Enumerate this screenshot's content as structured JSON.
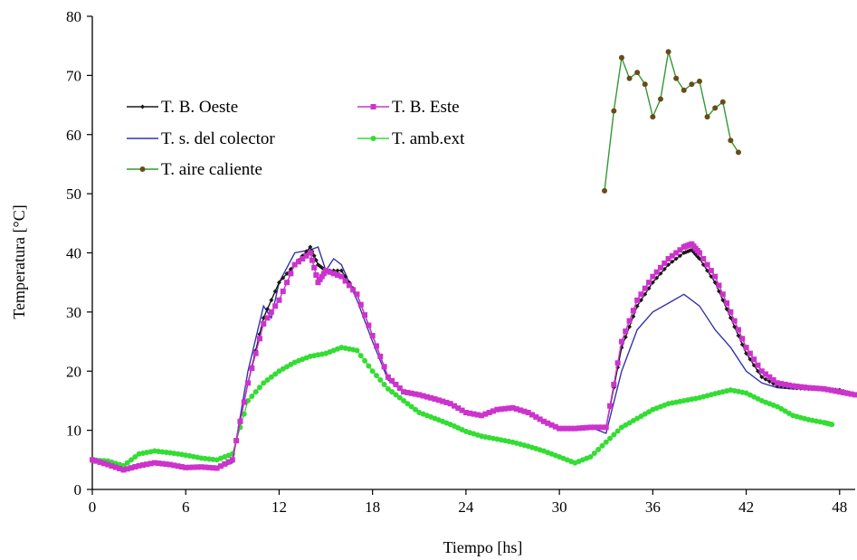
{
  "chart_data": {
    "type": "line",
    "title": "",
    "xlabel": "Tiempo [hs]",
    "ylabel": "Temperatura [°C]",
    "xlim": [
      0,
      49
    ],
    "ylim": [
      0,
      80
    ],
    "xticks": [
      0,
      6,
      12,
      18,
      24,
      30,
      36,
      42,
      48
    ],
    "yticks": [
      0,
      10,
      20,
      30,
      40,
      50,
      60,
      70,
      80
    ],
    "grid": false,
    "legend": "top-left",
    "series": [
      {
        "name": "T. B. Oeste",
        "color": "#1a1a1a",
        "marker": "diamond",
        "points": [
          [
            0,
            5
          ],
          [
            1,
            4.2
          ],
          [
            2,
            3.3
          ],
          [
            3,
            4
          ],
          [
            4,
            4.5
          ],
          [
            5,
            4.2
          ],
          [
            6,
            3.7
          ],
          [
            7,
            3.8
          ],
          [
            8,
            3.6
          ],
          [
            9,
            5
          ],
          [
            10,
            18
          ],
          [
            11,
            29
          ],
          [
            12,
            35
          ],
          [
            13,
            38
          ],
          [
            14,
            41
          ],
          [
            14.5,
            38
          ],
          [
            15,
            37
          ],
          [
            16,
            37
          ],
          [
            17,
            33
          ],
          [
            18,
            26
          ],
          [
            19,
            19
          ],
          [
            20,
            16.5
          ],
          [
            21,
            16
          ],
          [
            22,
            15.3
          ],
          [
            23,
            14.5
          ],
          [
            24,
            13
          ],
          [
            25,
            12.5
          ],
          [
            26,
            13.5
          ],
          [
            27,
            13.8
          ],
          [
            28,
            13
          ],
          [
            29,
            11.5
          ],
          [
            30,
            10.3
          ],
          [
            31,
            10.3
          ],
          [
            32,
            10.5
          ],
          [
            33,
            10.5
          ],
          [
            34,
            24
          ],
          [
            35,
            31
          ],
          [
            36,
            35
          ],
          [
            37,
            38
          ],
          [
            38,
            40
          ],
          [
            38.5,
            40.5
          ],
          [
            39,
            39
          ],
          [
            40,
            35
          ],
          [
            41,
            29
          ],
          [
            42,
            23
          ],
          [
            43,
            19
          ],
          [
            44,
            17.5
          ],
          [
            45,
            17.2
          ],
          [
            46,
            17
          ],
          [
            47,
            17
          ],
          [
            48,
            16.8
          ],
          [
            49,
            16
          ]
        ]
      },
      {
        "name": "T. B. Este",
        "color": "#cc33cc",
        "marker": "square",
        "points": [
          [
            0,
            5
          ],
          [
            1,
            4.2
          ],
          [
            2,
            3.3
          ],
          [
            3,
            4
          ],
          [
            4,
            4.5
          ],
          [
            5,
            4.2
          ],
          [
            6,
            3.7
          ],
          [
            7,
            3.8
          ],
          [
            8,
            3.6
          ],
          [
            9,
            5
          ],
          [
            10,
            18
          ],
          [
            11,
            28
          ],
          [
            12,
            32
          ],
          [
            13,
            38
          ],
          [
            14,
            40
          ],
          [
            14.5,
            35
          ],
          [
            15,
            37
          ],
          [
            16,
            36
          ],
          [
            17,
            33
          ],
          [
            18,
            26
          ],
          [
            19,
            19
          ],
          [
            20,
            16.5
          ],
          [
            21,
            16
          ],
          [
            22,
            15.3
          ],
          [
            23,
            14.5
          ],
          [
            24,
            13
          ],
          [
            25,
            12.5
          ],
          [
            26,
            13.5
          ],
          [
            27,
            13.8
          ],
          [
            28,
            13
          ],
          [
            29,
            11.5
          ],
          [
            30,
            10.3
          ],
          [
            31,
            10.3
          ],
          [
            32,
            10.5
          ],
          [
            33,
            10.5
          ],
          [
            34,
            25
          ],
          [
            35,
            32
          ],
          [
            36,
            36
          ],
          [
            37,
            39
          ],
          [
            38,
            41
          ],
          [
            38.5,
            41.5
          ],
          [
            39,
            40
          ],
          [
            40,
            36
          ],
          [
            41,
            30
          ],
          [
            42,
            24
          ],
          [
            43,
            20
          ],
          [
            44,
            18
          ],
          [
            45,
            17.5
          ],
          [
            46,
            17.2
          ],
          [
            47,
            17
          ],
          [
            48,
            16.5
          ],
          [
            49,
            16
          ]
        ]
      },
      {
        "name": "T. s. del colector",
        "color": "#3333aa",
        "marker": "none",
        "points": [
          [
            0,
            5
          ],
          [
            1,
            4.2
          ],
          [
            2,
            3.3
          ],
          [
            3,
            4
          ],
          [
            4,
            4.3
          ],
          [
            5,
            4
          ],
          [
            6,
            3.6
          ],
          [
            7,
            3.6
          ],
          [
            8,
            3.5
          ],
          [
            9,
            4.5
          ],
          [
            10,
            20
          ],
          [
            11,
            31
          ],
          [
            11.5,
            29
          ],
          [
            12,
            35
          ],
          [
            13,
            40
          ],
          [
            14,
            40.5
          ],
          [
            14.5,
            41
          ],
          [
            15,
            37
          ],
          [
            15.5,
            39
          ],
          [
            16,
            38
          ],
          [
            17,
            32
          ],
          [
            18,
            25
          ],
          [
            19,
            18.5
          ],
          [
            20,
            16.5
          ],
          [
            21,
            16
          ],
          [
            22,
            15.3
          ],
          [
            23,
            14.5
          ],
          [
            24,
            13
          ],
          [
            25,
            12.5
          ],
          [
            26,
            13.5
          ],
          [
            27,
            13.8
          ],
          [
            28,
            13
          ],
          [
            29,
            11.5
          ],
          [
            30,
            10.3
          ],
          [
            31,
            10.3
          ],
          [
            32,
            10.5
          ],
          [
            33,
            9.5
          ],
          [
            34,
            20
          ],
          [
            35,
            27
          ],
          [
            36,
            30
          ],
          [
            37,
            31.5
          ],
          [
            38,
            33
          ],
          [
            39,
            31
          ],
          [
            40,
            27
          ],
          [
            41,
            24
          ],
          [
            42,
            20
          ],
          [
            43,
            18
          ],
          [
            44,
            17.2
          ],
          [
            45,
            17
          ],
          [
            46,
            17
          ],
          [
            47,
            17
          ],
          [
            48,
            16.5
          ],
          [
            49,
            16
          ]
        ]
      },
      {
        "name": "T. amb.ext",
        "color": "#33dd33",
        "marker": "circle",
        "points": [
          [
            0,
            5
          ],
          [
            1,
            4.8
          ],
          [
            2,
            4
          ],
          [
            3,
            6
          ],
          [
            4,
            6.5
          ],
          [
            5,
            6.2
          ],
          [
            6,
            5.8
          ],
          [
            7,
            5.3
          ],
          [
            8,
            5
          ],
          [
            9,
            6
          ],
          [
            10,
            15
          ],
          [
            11,
            18
          ],
          [
            12,
            20
          ],
          [
            13,
            21.5
          ],
          [
            14,
            22.5
          ],
          [
            15,
            23
          ],
          [
            16,
            24
          ],
          [
            17,
            23.5
          ],
          [
            18,
            20
          ],
          [
            19,
            17
          ],
          [
            20,
            15
          ],
          [
            21,
            13
          ],
          [
            22,
            12
          ],
          [
            23,
            11
          ],
          [
            24,
            9.8
          ],
          [
            25,
            9
          ],
          [
            26,
            8.5
          ],
          [
            27,
            8
          ],
          [
            28,
            7.3
          ],
          [
            29,
            6.5
          ],
          [
            30,
            5.5
          ],
          [
            31,
            4.5
          ],
          [
            32,
            5.5
          ],
          [
            33,
            8
          ],
          [
            34,
            10.5
          ],
          [
            35,
            12
          ],
          [
            36,
            13.5
          ],
          [
            37,
            14.5
          ],
          [
            38,
            15
          ],
          [
            39,
            15.5
          ],
          [
            40,
            16.2
          ],
          [
            41,
            16.8
          ],
          [
            42,
            16.3
          ],
          [
            43,
            15
          ],
          [
            44,
            14
          ],
          [
            45,
            12.5
          ],
          [
            46,
            11.8
          ],
          [
            47,
            11.3
          ],
          [
            47.5,
            11
          ]
        ]
      },
      {
        "name": "T. aire caliente",
        "color": "#339933",
        "marker": "dot",
        "points": [
          [
            32.9,
            50.5
          ],
          [
            33.5,
            64
          ],
          [
            34,
            73
          ],
          [
            34.5,
            69.5
          ],
          [
            35,
            70.5
          ],
          [
            35.5,
            68.5
          ],
          [
            36,
            63
          ],
          [
            36.5,
            66
          ],
          [
            37,
            74
          ],
          [
            37.5,
            69.5
          ],
          [
            38,
            67.5
          ],
          [
            38.5,
            68.5
          ],
          [
            39,
            69
          ],
          [
            39.5,
            63
          ],
          [
            40,
            64.5
          ],
          [
            40.5,
            65.5
          ],
          [
            41,
            59
          ],
          [
            41.5,
            57
          ]
        ]
      }
    ]
  }
}
